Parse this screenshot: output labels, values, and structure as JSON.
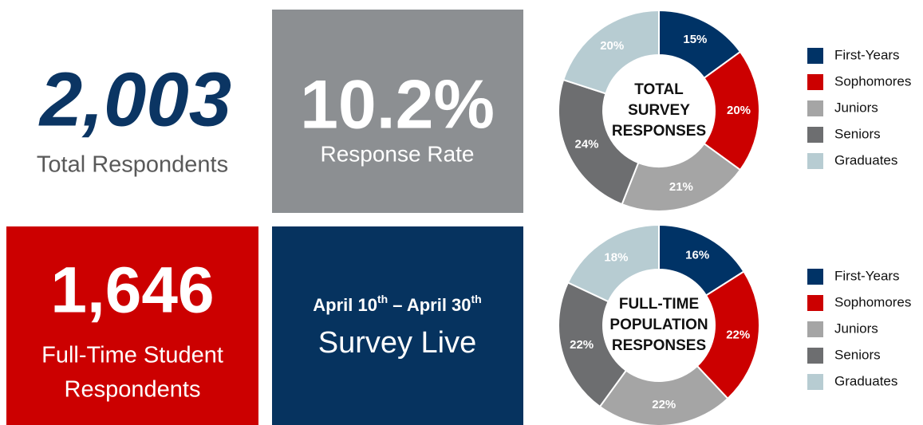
{
  "tiles": {
    "total": {
      "value": "2,003",
      "label": "Total Respondents"
    },
    "rate": {
      "value": "10.2%",
      "label": "Response Rate"
    },
    "fulltime": {
      "value": "1,646",
      "label_lines": [
        "Full-Time Student",
        "Respondents"
      ]
    },
    "dates": {
      "parts": [
        "April 10",
        "th",
        " – April 30",
        "th"
      ],
      "label": "Survey Live"
    }
  },
  "chart_data": [
    {
      "type": "donut",
      "title_lines": [
        "TOTAL",
        "SURVEY",
        "RESPONSES"
      ],
      "categories": [
        "First-Years",
        "Sophomores",
        "Juniors",
        "Seniors",
        "Graduates"
      ],
      "colors": [
        "#003366",
        "#cc0000",
        "#a5a5a5",
        "#6d6e70",
        "#b7ccd2"
      ],
      "values": [
        15,
        20,
        21,
        24,
        20
      ],
      "value_labels": [
        "15%",
        "20%",
        "21%",
        "24%",
        "20%"
      ]
    },
    {
      "type": "donut",
      "title_lines": [
        "FULL-TIME",
        "POPULATION",
        "RESPONSES"
      ],
      "categories": [
        "First-Years",
        "Sophomores",
        "Juniors",
        "Seniors",
        "Graduates"
      ],
      "colors": [
        "#003366",
        "#cc0000",
        "#a5a5a5",
        "#6d6e70",
        "#b7ccd2"
      ],
      "values": [
        16,
        22,
        22,
        22,
        18
      ],
      "value_labels": [
        "16%",
        "22%",
        "22%",
        "22%",
        "18%"
      ]
    }
  ]
}
